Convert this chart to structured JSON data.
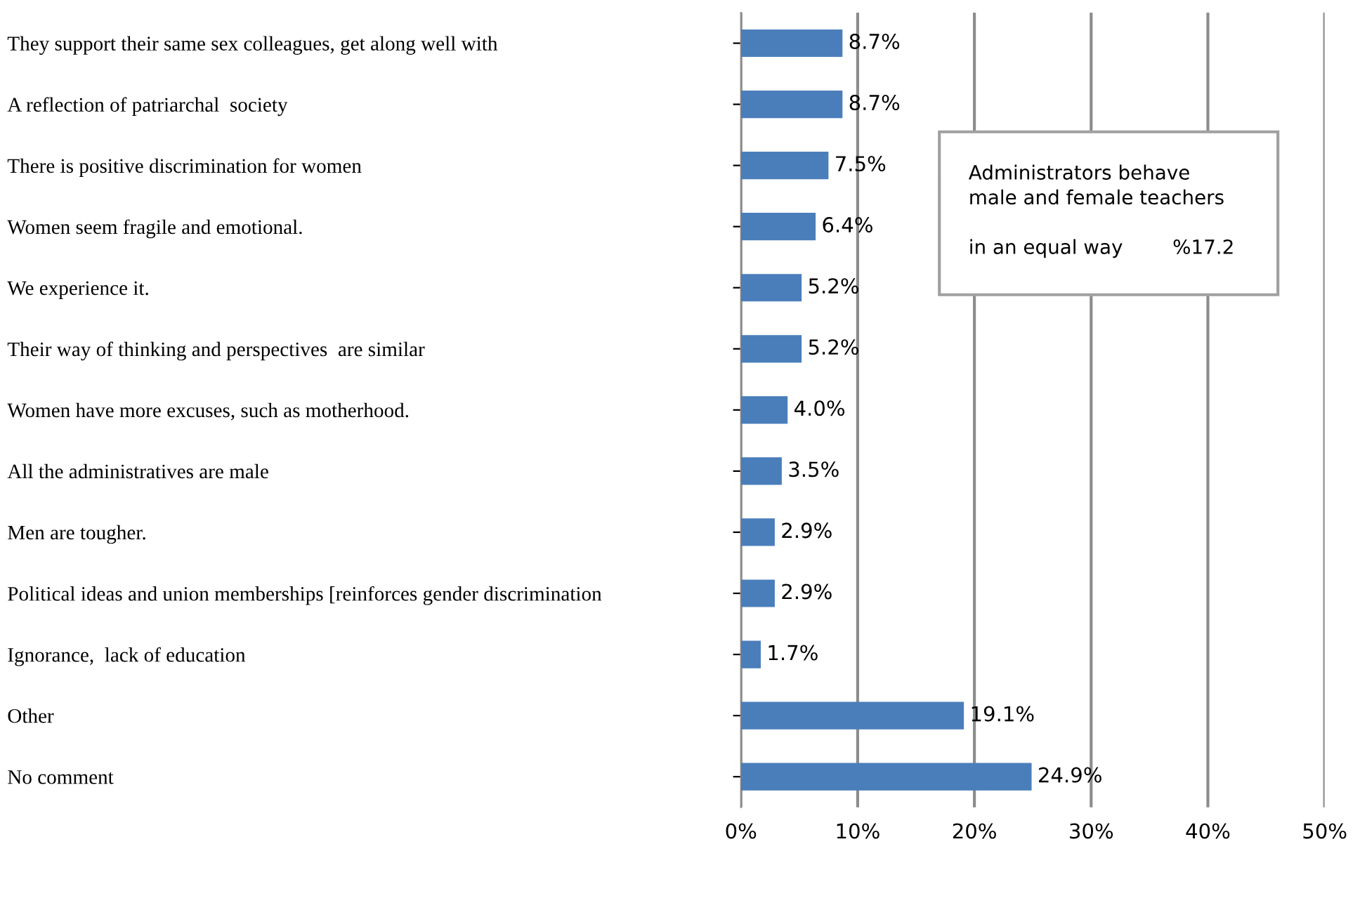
{
  "chart_data": {
    "type": "bar",
    "orientation": "horizontal",
    "categories": [
      "They support their same sex colleagues, get along well with",
      "A reflection of patriarchal  society",
      "There is positive discrimination for women",
      "Women seem fragile and emotional.",
      "We experience it.",
      "Their way of thinking and perspectives  are similar",
      "Women have more excuses, such as motherhood.",
      "All the administratives are male",
      "Men are tougher.",
      "Political ideas and union memberships [reinforces gender discrimination",
      "Ignorance,  lack of education",
      "Other",
      "No comment"
    ],
    "values": [
      8.7,
      8.7,
      7.5,
      6.4,
      5.2,
      5.2,
      4.0,
      3.5,
      2.9,
      2.9,
      1.7,
      19.1,
      24.9
    ],
    "value_labels": [
      "8.7%",
      "8.7%",
      "7.5%",
      "6.4%",
      "5.2%",
      "5.2%",
      "4.0%",
      "3.5%",
      "2.9%",
      "2.9%",
      "1.7%",
      "19.1%",
      "24.9%"
    ],
    "color": "#4a7ebb",
    "xlim": [
      0,
      50
    ],
    "xticks": [
      {
        "value": 0,
        "label": "0%"
      },
      {
        "value": 10,
        "label": "10%"
      },
      {
        "value": 20,
        "label": "20%"
      },
      {
        "value": 30,
        "label": "30%"
      },
      {
        "value": 40,
        "label": "40%"
      },
      {
        "value": 50,
        "label": "50%"
      }
    ],
    "grid": "x",
    "annotations": [
      "Administrators behave\nmale and female teachers\n\nin an equal way        %17.2"
    ]
  }
}
